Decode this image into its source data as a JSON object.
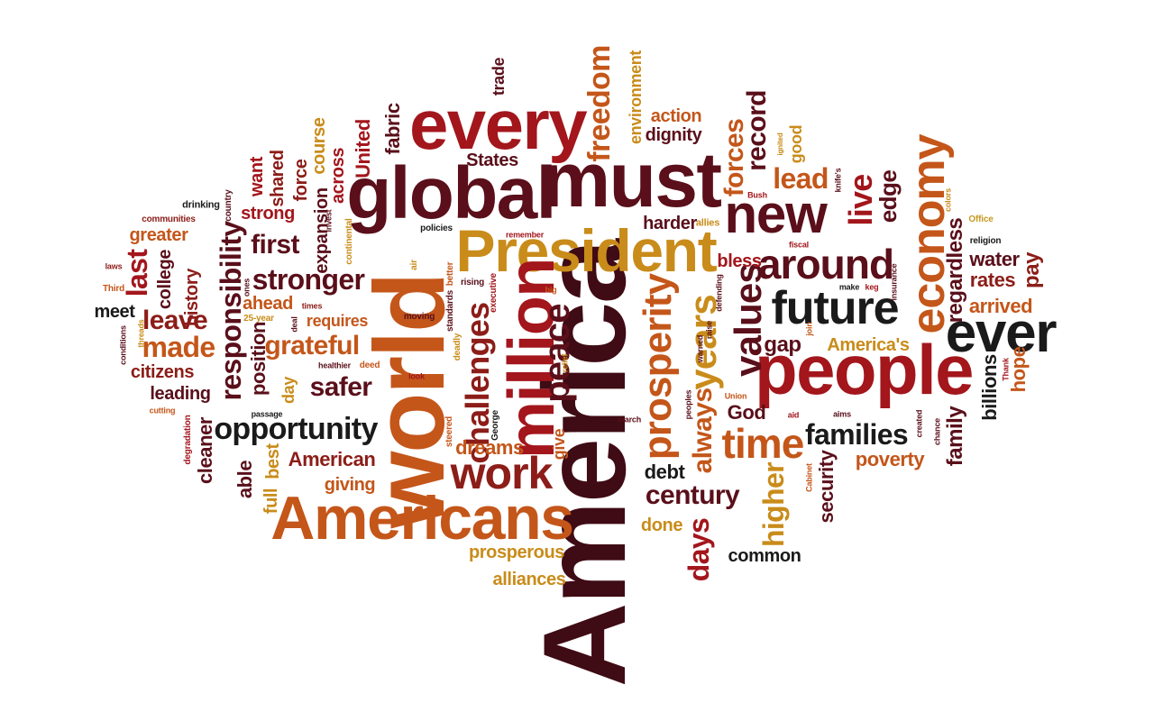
{
  "palette": {
    "darkest": "#3f0b14",
    "maroon": "#5a0f1a",
    "crimson": "#a3161c",
    "red": "#8c1d18",
    "orange": "#c4561a",
    "amber": "#c98c1a",
    "gold": "#c49a22",
    "black": "#1a1a1a"
  },
  "words": [
    {
      "text": "America",
      "color": "darkest"
    },
    {
      "text": "world",
      "color": "orange"
    },
    {
      "text": "must",
      "color": "maroon"
    },
    {
      "text": "global",
      "color": "maroon"
    },
    {
      "text": "every",
      "color": "crimson"
    },
    {
      "text": "people",
      "color": "crimson"
    },
    {
      "text": "Americans",
      "color": "orange"
    },
    {
      "text": "President",
      "color": "amber"
    },
    {
      "text": "million",
      "color": "crimson"
    },
    {
      "text": "new",
      "color": "maroon"
    },
    {
      "text": "ever",
      "color": "black"
    },
    {
      "text": "future",
      "color": "black"
    },
    {
      "text": "economy",
      "color": "orange"
    },
    {
      "text": "work",
      "color": "red"
    },
    {
      "text": "time",
      "color": "orange"
    },
    {
      "text": "around",
      "color": "maroon"
    },
    {
      "text": "prosperity",
      "color": "orange"
    },
    {
      "text": "values",
      "color": "maroon"
    },
    {
      "text": "years",
      "color": "amber"
    },
    {
      "text": "peace",
      "color": "maroon"
    },
    {
      "text": "challenges",
      "color": "red"
    },
    {
      "text": "opportunity",
      "color": "black"
    },
    {
      "text": "responsibility",
      "color": "maroon"
    },
    {
      "text": "stronger",
      "color": "maroon"
    },
    {
      "text": "grateful",
      "color": "orange"
    },
    {
      "text": "families",
      "color": "black"
    },
    {
      "text": "century",
      "color": "maroon"
    },
    {
      "text": "freedom",
      "color": "orange"
    },
    {
      "text": "live",
      "color": "crimson"
    },
    {
      "text": "record",
      "color": "maroon"
    },
    {
      "text": "forces",
      "color": "orange"
    },
    {
      "text": "lead",
      "color": "orange"
    },
    {
      "text": "days",
      "color": "crimson"
    },
    {
      "text": "higher",
      "color": "amber"
    },
    {
      "text": "always",
      "color": "orange"
    },
    {
      "text": "first",
      "color": "maroon"
    },
    {
      "text": "safer",
      "color": "maroon"
    },
    {
      "text": "made",
      "color": "orange"
    },
    {
      "text": "leave",
      "color": "red"
    },
    {
      "text": "last",
      "color": "crimson"
    },
    {
      "text": "dreams",
      "color": "orange"
    },
    {
      "text": "American",
      "color": "red"
    },
    {
      "text": "edge",
      "color": "maroon"
    },
    {
      "text": "regardless",
      "color": "maroon"
    },
    {
      "text": "water",
      "color": "maroon"
    },
    {
      "text": "rates",
      "color": "red"
    },
    {
      "text": "pay",
      "color": "red"
    },
    {
      "text": "arrived",
      "color": "orange"
    },
    {
      "text": "billions",
      "color": "black"
    },
    {
      "text": "hope",
      "color": "orange"
    },
    {
      "text": "gap",
      "color": "maroon"
    },
    {
      "text": "America's",
      "color": "amber"
    },
    {
      "text": "God",
      "color": "maroon"
    },
    {
      "text": "poverty",
      "color": "orange"
    },
    {
      "text": "security",
      "color": "maroon"
    },
    {
      "text": "family",
      "color": "maroon"
    },
    {
      "text": "debt",
      "color": "black"
    },
    {
      "text": "done",
      "color": "amber"
    },
    {
      "text": "common",
      "color": "black"
    },
    {
      "text": "prosperous",
      "color": "amber"
    },
    {
      "text": "alliances",
      "color": "amber"
    },
    {
      "text": "giving",
      "color": "orange"
    },
    {
      "text": "able",
      "color": "maroon"
    },
    {
      "text": "full",
      "color": "amber"
    },
    {
      "text": "best",
      "color": "amber"
    },
    {
      "text": "cleaner",
      "color": "maroon"
    },
    {
      "text": "position",
      "color": "maroon"
    },
    {
      "text": "day",
      "color": "amber"
    },
    {
      "text": "leading",
      "color": "maroon"
    },
    {
      "text": "citizens",
      "color": "red"
    },
    {
      "text": "meet",
      "color": "black"
    },
    {
      "text": "college",
      "color": "maroon"
    },
    {
      "text": "history",
      "color": "red"
    },
    {
      "text": "greater",
      "color": "orange"
    },
    {
      "text": "strong",
      "color": "crimson"
    },
    {
      "text": "want",
      "color": "crimson"
    },
    {
      "text": "shared",
      "color": "red"
    },
    {
      "text": "force",
      "color": "red"
    },
    {
      "text": "course",
      "color": "amber"
    },
    {
      "text": "expansion",
      "color": "maroon"
    },
    {
      "text": "across",
      "color": "crimson"
    },
    {
      "text": "United",
      "color": "crimson"
    },
    {
      "text": "fabric",
      "color": "maroon"
    },
    {
      "text": "States",
      "color": "maroon"
    },
    {
      "text": "trade",
      "color": "maroon"
    },
    {
      "text": "environment",
      "color": "amber"
    },
    {
      "text": "action",
      "color": "orange"
    },
    {
      "text": "dignity",
      "color": "maroon"
    },
    {
      "text": "good",
      "color": "amber"
    },
    {
      "text": "harder",
      "color": "maroon"
    },
    {
      "text": "bless",
      "color": "crimson"
    },
    {
      "text": "ahead",
      "color": "orange"
    },
    {
      "text": "requires",
      "color": "orange"
    },
    {
      "text": "give",
      "color": "orange"
    },
    {
      "text": "allies",
      "color": "amber"
    },
    {
      "text": "drinking",
      "color": "black"
    },
    {
      "text": "country",
      "color": "maroon"
    },
    {
      "text": "communities",
      "color": "red"
    },
    {
      "text": "laws",
      "color": "red"
    },
    {
      "text": "Third",
      "color": "orange"
    },
    {
      "text": "conditions",
      "color": "maroon"
    },
    {
      "text": "threads",
      "color": "amber"
    },
    {
      "text": "25-year",
      "color": "amber"
    },
    {
      "text": "ones",
      "color": "maroon"
    },
    {
      "text": "times",
      "color": "red"
    },
    {
      "text": "deal",
      "color": "maroon"
    },
    {
      "text": "healthier",
      "color": "maroon"
    },
    {
      "text": "deed",
      "color": "orange"
    },
    {
      "text": "passage",
      "color": "black"
    },
    {
      "text": "cutting",
      "color": "orange"
    },
    {
      "text": "degradation",
      "color": "crimson"
    },
    {
      "text": "air",
      "color": "amber"
    },
    {
      "text": "invest",
      "color": "maroon"
    },
    {
      "text": "continental",
      "color": "amber"
    },
    {
      "text": "policies",
      "color": "black"
    },
    {
      "text": "better",
      "color": "orange"
    },
    {
      "text": "standards",
      "color": "maroon"
    },
    {
      "text": "rising",
      "color": "maroon"
    },
    {
      "text": "executive",
      "color": "crimson"
    },
    {
      "text": "remember",
      "color": "crimson"
    },
    {
      "text": "big",
      "color": "orange"
    },
    {
      "text": "moving",
      "color": "maroon"
    },
    {
      "text": "deadly",
      "color": "amber"
    },
    {
      "text": "look",
      "color": "crimson"
    },
    {
      "text": "relief",
      "color": "amber"
    },
    {
      "text": "George",
      "color": "black"
    },
    {
      "text": "steered",
      "color": "orange"
    },
    {
      "text": "march",
      "color": "maroon"
    },
    {
      "text": "warned",
      "color": "maroon"
    },
    {
      "text": "raise",
      "color": "maroon"
    },
    {
      "text": "peoples",
      "color": "maroon"
    },
    {
      "text": "Union",
      "color": "orange"
    },
    {
      "text": "defending",
      "color": "maroon"
    },
    {
      "text": "aid",
      "color": "crimson"
    },
    {
      "text": "aims",
      "color": "maroon"
    },
    {
      "text": "Cabinet",
      "color": "orange"
    },
    {
      "text": "created",
      "color": "maroon"
    },
    {
      "text": "chance",
      "color": "maroon"
    },
    {
      "text": "join",
      "color": "orange"
    },
    {
      "text": "fiscal",
      "color": "crimson"
    },
    {
      "text": "make",
      "color": "black"
    },
    {
      "text": "keg",
      "color": "crimson"
    },
    {
      "text": "insurance",
      "color": "maroon"
    },
    {
      "text": "Office",
      "color": "gold"
    },
    {
      "text": "religion",
      "color": "black"
    },
    {
      "text": "colors",
      "color": "amber"
    },
    {
      "text": "knife's",
      "color": "maroon"
    },
    {
      "text": "ignited",
      "color": "amber"
    },
    {
      "text": "Bush",
      "color": "crimson"
    },
    {
      "text": "Thank",
      "color": "crimson"
    }
  ]
}
